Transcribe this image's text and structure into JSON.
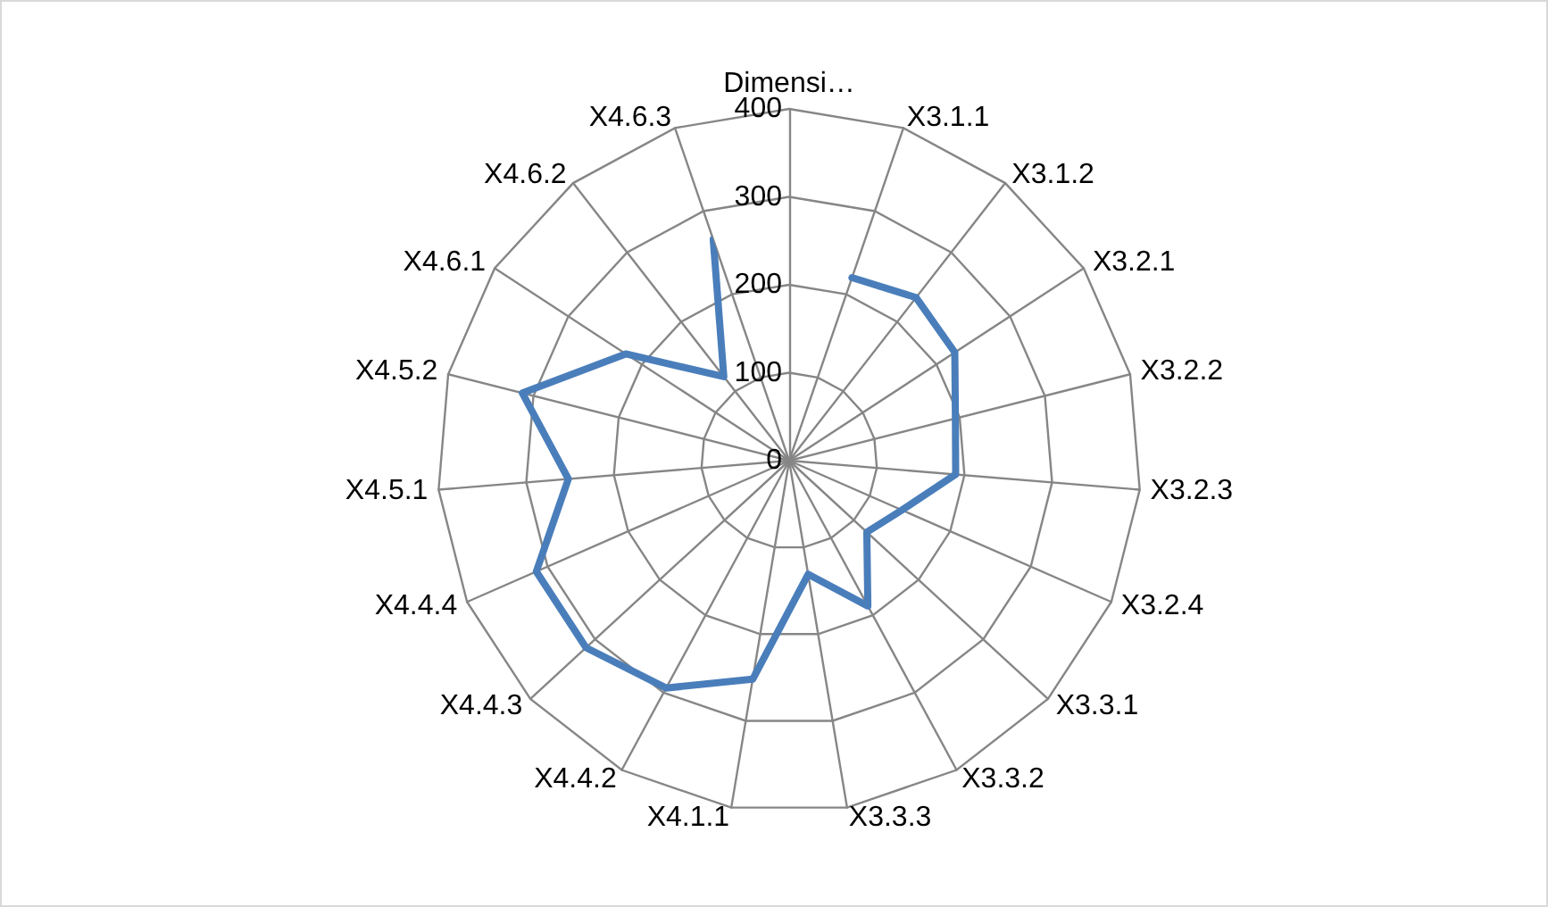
{
  "chart_data": {
    "type": "radar",
    "categories": [
      "Dimensi…",
      "X3.1.1",
      "X3.1.2",
      "X3.2.1",
      "X3.2.2",
      "X3.2.3",
      "X3.2.4",
      "X3.3.1",
      "X3.3.2",
      "X3.3.3",
      "X4.1.1",
      "X4.4.2",
      "X4.4.3",
      "X4.4.4",
      "X4.5.1",
      "X4.5.2",
      "X4.6.1",
      "X4.6.2",
      "X4.6.3"
    ],
    "series": [
      {
        "color": "#4a7ebb",
        "values": [
          null,
          220,
          235,
          225,
          195,
          190,
          140,
          120,
          188,
          131,
          252,
          294,
          314,
          314,
          252,
          313,
          222,
          121,
          266
        ]
      }
    ],
    "ylim": [
      0,
      400
    ],
    "yticks": [
      0,
      100,
      200,
      300,
      400
    ],
    "grid": true
  }
}
